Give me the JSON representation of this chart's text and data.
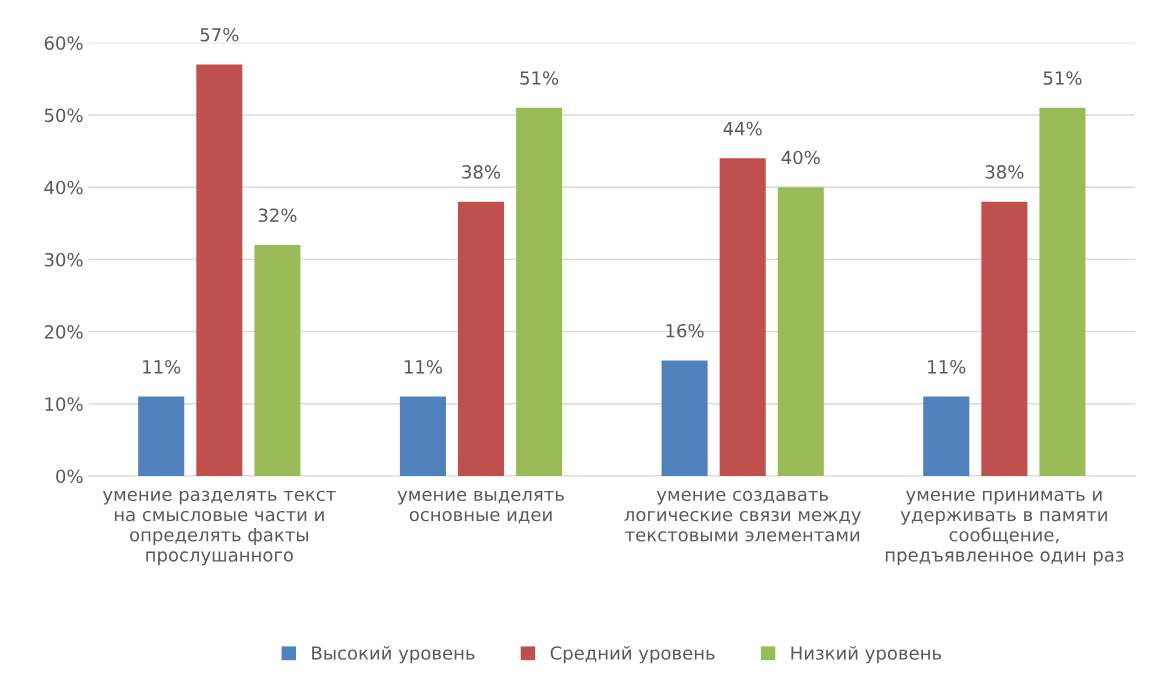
{
  "chart_data": {
    "type": "bar",
    "categories": [
      "умение разделять текст\nна смысловые части и\nопределять факты\nпрослушанного",
      "умение выделять\nосновные идеи",
      "умение создавать\nлогические связи между\nтекстовыми элементами",
      "умение принимать и\nудерживать в памяти\nсообщение,\nпредъявленное один раз"
    ],
    "series": [
      {
        "name": "Высокий уровень",
        "color": "#4f81bd",
        "values": [
          11,
          11,
          16,
          11
        ],
        "value_labels": [
          "11%",
          "11%",
          "16%",
          "11%"
        ]
      },
      {
        "name": "Средний уровень",
        "color": "#c0504d",
        "values": [
          57,
          38,
          44,
          38
        ],
        "value_labels": [
          "57%",
          "38%",
          "44%",
          "38%"
        ]
      },
      {
        "name": "Низкий уровень",
        "color": "#9bbb59",
        "values": [
          32,
          51,
          40,
          51
        ],
        "value_labels": [
          "32%",
          "51%",
          "40%",
          "51%"
        ]
      }
    ],
    "ylim": [
      0,
      60
    ],
    "yticks": [
      {
        "value": 0,
        "label": "0%"
      },
      {
        "value": 10,
        "label": "10%"
      },
      {
        "value": 20,
        "label": "20%"
      },
      {
        "value": 30,
        "label": "30%"
      },
      {
        "value": 40,
        "label": "40%"
      },
      {
        "value": 50,
        "label": "50%"
      },
      {
        "value": 60,
        "label": "60%"
      }
    ],
    "grid": "y",
    "legend": "bottom"
  }
}
